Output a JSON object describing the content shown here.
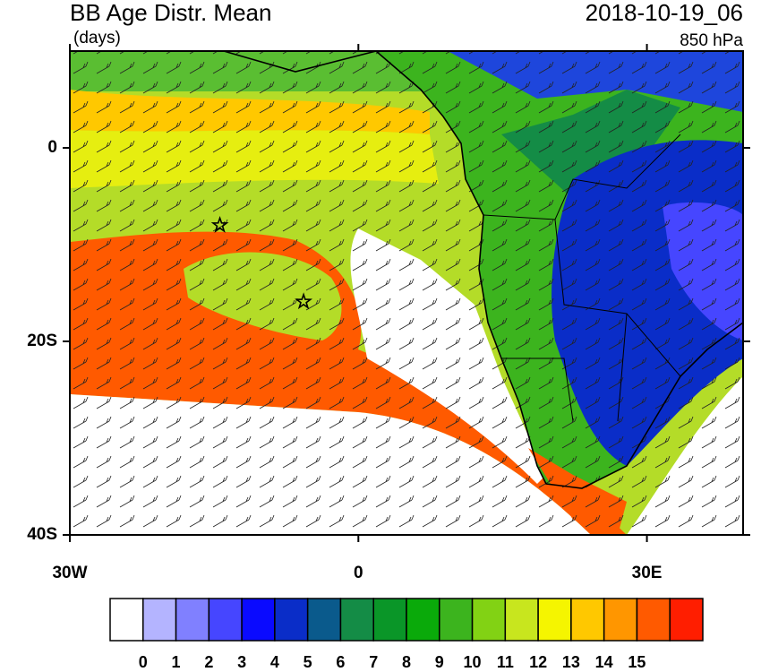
{
  "header": {
    "title": "BB Age Distr. Mean",
    "units": "(days)",
    "datetime": "2018-10-19_06",
    "level": "850 hPa"
  },
  "map": {
    "xlim": [
      -30,
      40
    ],
    "ylim": [
      -40,
      10
    ],
    "xticks": [
      {
        "value": -30,
        "label": "30W"
      },
      0,
      {
        "value": 30,
        "label": "30E"
      }
    ],
    "yticks": [
      0,
      {
        "value": -20,
        "label": "20S"
      },
      {
        "value": -40,
        "label": "40S"
      }
    ],
    "markers": {
      "lon": [
        -14.4,
        -5.7
      ],
      "lat": [
        -8,
        -15.9
      ]
    }
  },
  "colorbar": {
    "colors": [
      "#ffffff",
      "#b4b4ff",
      "#8080ff",
      "#4646ff",
      "#0a0aff",
      "#0a2dc8",
      "#0a5a8c",
      "#148c46",
      "#0a9628",
      "#0aaa0a",
      "#3cb41e",
      "#82d214",
      "#c8e61e",
      "#f5f500",
      "#ffc800",
      "#ff9600",
      "#ff5a00",
      "#ff1e00"
    ],
    "labels": [
      0,
      1,
      2,
      3,
      4,
      5,
      6,
      7,
      8,
      9,
      10,
      11,
      12,
      13,
      14,
      15
    ]
  }
}
